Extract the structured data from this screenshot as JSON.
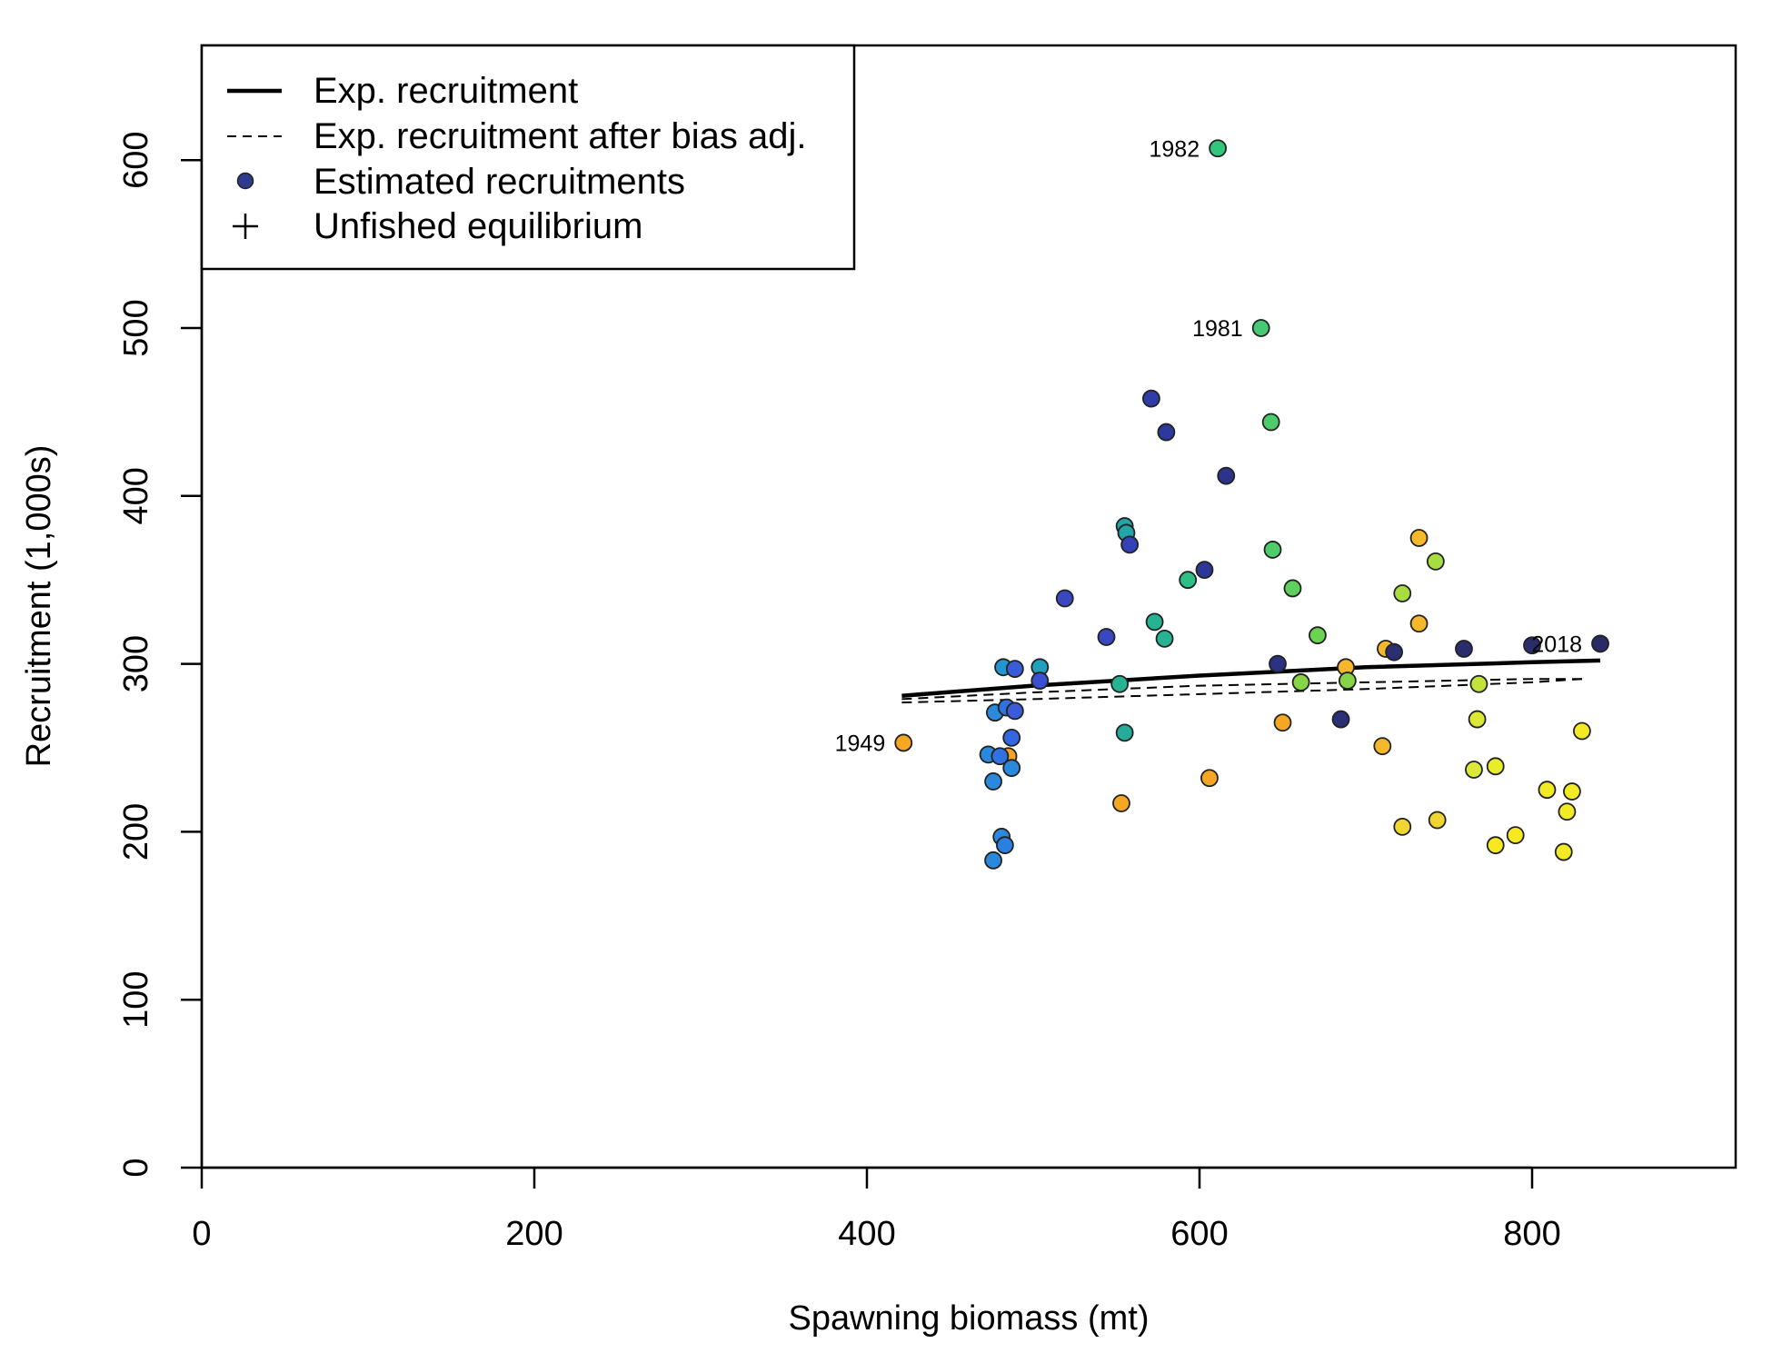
{
  "chart_data": {
    "type": "scatter",
    "xlabel": "Spawning biomass (mt)",
    "ylabel": "Recruitment (1,000s)",
    "xlim": [
      0,
      925
    ],
    "ylim": [
      0,
      660
    ],
    "x_ticks": [
      "0",
      "200",
      "400",
      "600",
      "800"
    ],
    "y_ticks": [
      "0",
      "100",
      "200",
      "300",
      "400",
      "500",
      "600"
    ],
    "legend": {
      "position": "top-left",
      "entries": [
        {
          "label": "Exp. recruitment",
          "symbol": "solid-line"
        },
        {
          "label": "Exp. recruitment after bias adj.",
          "symbol": "dashed-line"
        },
        {
          "label": "Estimated recruitments",
          "symbol": "circle",
          "color": "#2e3a8c"
        },
        {
          "label": "Unfished equilibrium",
          "symbol": "plus"
        }
      ]
    },
    "expected_curve": {
      "x": [
        421,
        500,
        600,
        700,
        800,
        841
      ],
      "y": [
        281,
        287,
        293,
        298,
        301,
        302
      ]
    },
    "bias_adjusted_curves": [
      {
        "x": [
          421,
          500,
          600,
          700,
          800,
          830
        ],
        "y": [
          279,
          283,
          287,
          289,
          291,
          291
        ]
      },
      {
        "x": [
          421,
          500,
          600,
          700,
          800,
          830
        ],
        "y": [
          277,
          279,
          282,
          285,
          289,
          291
        ]
      }
    ],
    "points": [
      {
        "x": 422,
        "y": 253,
        "color": "#f5a623",
        "label": "1949"
      },
      {
        "x": 485,
        "y": 245,
        "color": "#f5a623"
      },
      {
        "x": 553,
        "y": 217,
        "color": "#f5a623"
      },
      {
        "x": 606,
        "y": 232,
        "color": "#f5a623"
      },
      {
        "x": 650,
        "y": 265,
        "color": "#f5a623"
      },
      {
        "x": 688,
        "y": 298,
        "color": "#f5b82a"
      },
      {
        "x": 710,
        "y": 251,
        "color": "#f5b82a"
      },
      {
        "x": 712,
        "y": 309,
        "color": "#f5b82a"
      },
      {
        "x": 732,
        "y": 375,
        "color": "#f5b82a"
      },
      {
        "x": 732,
        "y": 324,
        "color": "#f5b82a"
      },
      {
        "x": 722,
        "y": 203,
        "color": "#f0d530"
      },
      {
        "x": 743,
        "y": 207,
        "color": "#f0d530"
      },
      {
        "x": 778,
        "y": 192,
        "color": "#f7e920"
      },
      {
        "x": 790,
        "y": 198,
        "color": "#f7e920"
      },
      {
        "x": 778,
        "y": 239,
        "color": "#e8ec2a"
      },
      {
        "x": 765,
        "y": 237,
        "color": "#dbe838"
      },
      {
        "x": 767,
        "y": 267,
        "color": "#dbe838"
      },
      {
        "x": 809,
        "y": 225,
        "color": "#f2ea25"
      },
      {
        "x": 819,
        "y": 188,
        "color": "#f2ea25"
      },
      {
        "x": 821,
        "y": 212,
        "color": "#f2ea25"
      },
      {
        "x": 824,
        "y": 224,
        "color": "#f2ea25"
      },
      {
        "x": 830,
        "y": 260,
        "color": "#f2ea25"
      },
      {
        "x": 768,
        "y": 288,
        "color": "#c4e23a"
      },
      {
        "x": 742,
        "y": 361,
        "color": "#a7dd41"
      },
      {
        "x": 722,
        "y": 342,
        "color": "#a7dd41"
      },
      {
        "x": 689,
        "y": 290,
        "color": "#86d549"
      },
      {
        "x": 661,
        "y": 289,
        "color": "#86d549"
      },
      {
        "x": 671,
        "y": 317,
        "color": "#6bd254"
      },
      {
        "x": 656,
        "y": 345,
        "color": "#5fd05e"
      },
      {
        "x": 643,
        "y": 444,
        "color": "#4fcc6a"
      },
      {
        "x": 644,
        "y": 368,
        "color": "#4fcc6a"
      },
      {
        "x": 637,
        "y": 500,
        "color": "#45c972",
        "label": "1981"
      },
      {
        "x": 611,
        "y": 607,
        "color": "#35c47c",
        "label": "1982"
      },
      {
        "x": 593,
        "y": 350,
        "color": "#2ebf85"
      },
      {
        "x": 573,
        "y": 325,
        "color": "#25b391"
      },
      {
        "x": 579,
        "y": 315,
        "color": "#25b391"
      },
      {
        "x": 552,
        "y": 288,
        "color": "#25b391"
      },
      {
        "x": 555,
        "y": 259,
        "color": "#25ab98"
      },
      {
        "x": 555,
        "y": 382,
        "color": "#21a5a6"
      },
      {
        "x": 556,
        "y": 378,
        "color": "#21a5a6"
      },
      {
        "x": 504,
        "y": 298,
        "color": "#1fa0c0"
      },
      {
        "x": 482,
        "y": 298,
        "color": "#2396d2"
      },
      {
        "x": 477,
        "y": 271,
        "color": "#2a89dc"
      },
      {
        "x": 487,
        "y": 238,
        "color": "#2a89dc"
      },
      {
        "x": 476,
        "y": 230,
        "color": "#2a89dc"
      },
      {
        "x": 473,
        "y": 246,
        "color": "#2a89dc"
      },
      {
        "x": 481,
        "y": 197,
        "color": "#2a89dc"
      },
      {
        "x": 476,
        "y": 183,
        "color": "#2a89dc"
      },
      {
        "x": 483,
        "y": 192,
        "color": "#2a7fe0"
      },
      {
        "x": 480,
        "y": 245,
        "color": "#2f72e0"
      },
      {
        "x": 484,
        "y": 274,
        "color": "#2f72e0"
      },
      {
        "x": 487,
        "y": 256,
        "color": "#3466e0"
      },
      {
        "x": 489,
        "y": 272,
        "color": "#3a5cd8"
      },
      {
        "x": 489,
        "y": 297,
        "color": "#3a5cd8"
      },
      {
        "x": 504,
        "y": 290,
        "color": "#3a50d0"
      },
      {
        "x": 519,
        "y": 339,
        "color": "#3947c0"
      },
      {
        "x": 544,
        "y": 316,
        "color": "#3947c0"
      },
      {
        "x": 558,
        "y": 371,
        "color": "#3342b5"
      },
      {
        "x": 571,
        "y": 458,
        "color": "#2f3da8"
      },
      {
        "x": 580,
        "y": 438,
        "color": "#2e399e"
      },
      {
        "x": 603,
        "y": 356,
        "color": "#2d3795"
      },
      {
        "x": 616,
        "y": 412,
        "color": "#2c348a"
      },
      {
        "x": 647,
        "y": 300,
        "color": "#2b3281"
      },
      {
        "x": 685,
        "y": 267,
        "color": "#2a2f78"
      },
      {
        "x": 717,
        "y": 307,
        "color": "#2a2f72"
      },
      {
        "x": 759,
        "y": 309,
        "color": "#292d6e"
      },
      {
        "x": 800,
        "y": 311,
        "color": "#292d6a"
      },
      {
        "x": 841,
        "y": 312,
        "color": "#282b66",
        "label": "2018"
      }
    ]
  }
}
